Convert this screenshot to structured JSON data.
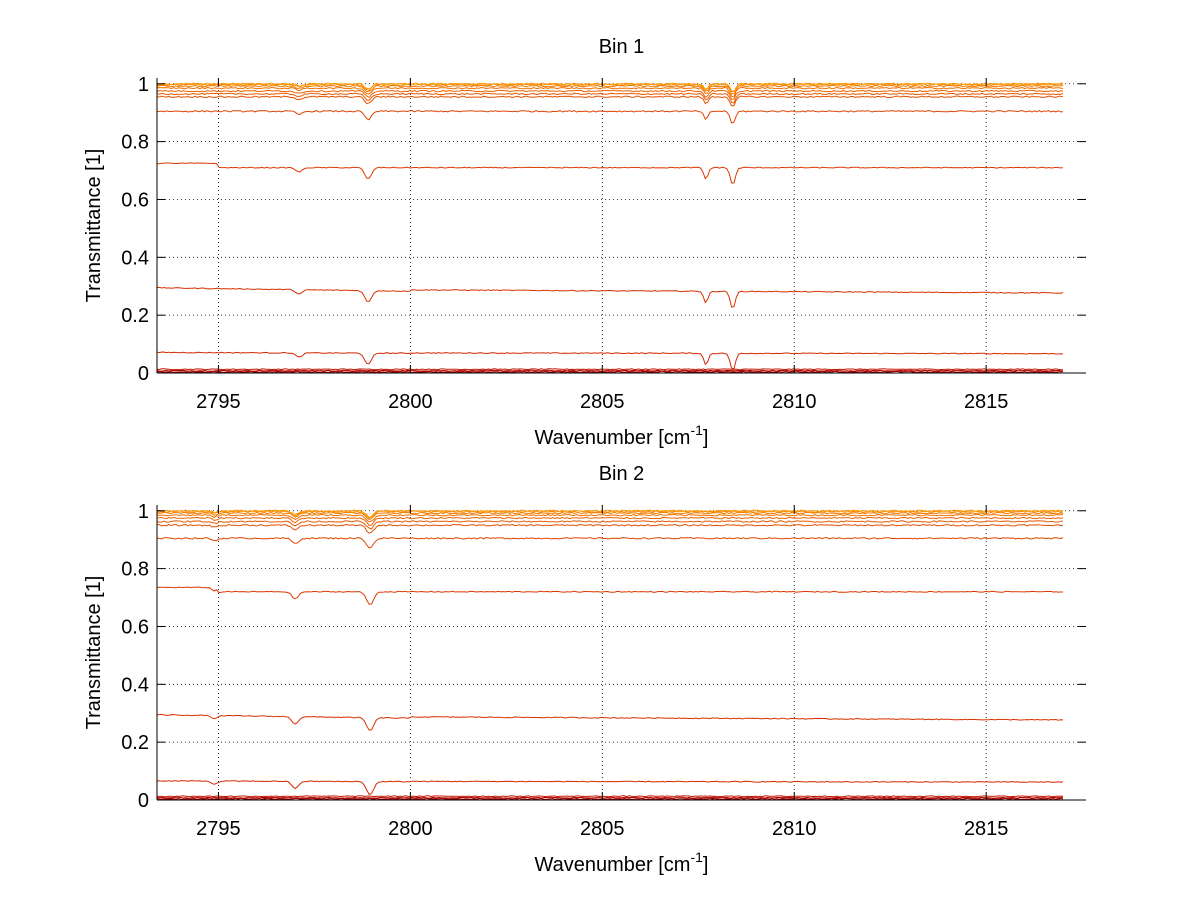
{
  "chart_data": [
    {
      "type": "line",
      "title": "Bin 1",
      "xlabel": "Wavenumber [cm",
      "xlabel_sup": "-1",
      "xlabel_end": "]",
      "ylabel": "Transmittance [1]",
      "xlim": [
        2793.4,
        2817.6
      ],
      "ylim": [
        0,
        1.02
      ],
      "xticks": [
        2795,
        2800,
        2805,
        2810,
        2815
      ],
      "yticks": [
        0,
        0.2,
        0.4,
        0.6,
        0.8,
        1
      ],
      "grid": true,
      "x_range": [
        2793.4,
        2817.0
      ],
      "series": [
        {
          "base": 0.001,
          "color": "#8b0000"
        },
        {
          "base": 0.004,
          "color": "#a00000"
        },
        {
          "base": 0.008,
          "color": "#b30000"
        },
        {
          "base": 0.013,
          "color": "#c41a00"
        },
        {
          "base": 0.07,
          "color": "#d42800"
        },
        {
          "base": 0.29,
          "color": "#d83000"
        },
        {
          "base": 0.71,
          "color": "#dc3800"
        },
        {
          "base": 0.905,
          "color": "#e04400"
        },
        {
          "base": 0.955,
          "color": "#e45000"
        },
        {
          "base": 0.965,
          "color": "#e85a00"
        },
        {
          "base": 0.975,
          "color": "#ec6400"
        },
        {
          "base": 0.985,
          "color": "#f07000"
        },
        {
          "base": 0.992,
          "color": "#f47c00"
        },
        {
          "base": 0.997,
          "color": "#f88800"
        },
        {
          "base": 1.0,
          "color": "#ff9900"
        }
      ],
      "dips": [
        {
          "x": 2797.1,
          "depth": 0.015,
          "width": 0.12
        },
        {
          "x": 2798.9,
          "depth": 0.04,
          "width": 0.12
        },
        {
          "x": 2807.7,
          "depth": 0.04,
          "width": 0.08
        },
        {
          "x": 2808.4,
          "depth": 0.06,
          "width": 0.09
        }
      ]
    },
    {
      "type": "line",
      "title": "Bin 2",
      "xlabel": "Wavenumber [cm",
      "xlabel_sup": "-1",
      "xlabel_end": "]",
      "ylabel": "Transmittance [1]",
      "xlim": [
        2793.4,
        2817.6
      ],
      "ylim": [
        0,
        1.02
      ],
      "xticks": [
        2795,
        2800,
        2805,
        2810,
        2815
      ],
      "yticks": [
        0,
        0.2,
        0.4,
        0.6,
        0.8,
        1
      ],
      "grid": true,
      "x_range": [
        2793.4,
        2817.0
      ],
      "series": [
        {
          "base": 0.001,
          "color": "#8b0000"
        },
        {
          "base": 0.004,
          "color": "#a00000"
        },
        {
          "base": 0.008,
          "color": "#b30000"
        },
        {
          "base": 0.013,
          "color": "#c41a00"
        },
        {
          "base": 0.065,
          "color": "#d42800"
        },
        {
          "base": 0.29,
          "color": "#d83000"
        },
        {
          "base": 0.72,
          "color": "#dc3800"
        },
        {
          "base": 0.905,
          "color": "#e04400"
        },
        {
          "base": 0.95,
          "color": "#e45000"
        },
        {
          "base": 0.963,
          "color": "#e85a00"
        },
        {
          "base": 0.975,
          "color": "#ec6400"
        },
        {
          "base": 0.985,
          "color": "#f07000"
        },
        {
          "base": 0.992,
          "color": "#f47c00"
        },
        {
          "base": 0.997,
          "color": "#f88800"
        },
        {
          "base": 1.0,
          "color": "#ff9900"
        }
      ],
      "dips": [
        {
          "x": 2794.9,
          "depth": 0.012,
          "width": 0.1
        },
        {
          "x": 2797.0,
          "depth": 0.025,
          "width": 0.12
        },
        {
          "x": 2798.95,
          "depth": 0.045,
          "width": 0.13
        }
      ]
    }
  ]
}
